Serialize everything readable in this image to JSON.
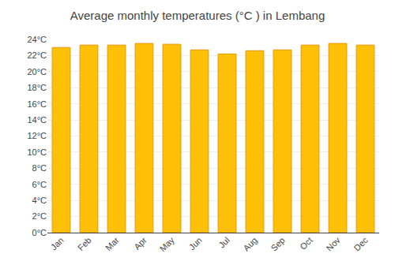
{
  "chart_data": {
    "type": "bar",
    "title": "Average monthly temperatures (°C ) in Lembang",
    "categories": [
      "Jan",
      "Feb",
      "Mar",
      "Apr",
      "May",
      "Jun",
      "Jul",
      "Aug",
      "Sep",
      "Oct",
      "Nov",
      "Dec"
    ],
    "values": [
      23.0,
      23.3,
      23.3,
      23.5,
      23.4,
      22.7,
      22.2,
      22.6,
      22.7,
      23.3,
      23.5,
      23.3
    ],
    "color": "#FFC107",
    "ylim": [
      0,
      24
    ],
    "yticks": [
      {
        "value": 0,
        "label": "0°C"
      },
      {
        "value": 2,
        "label": "2°C"
      },
      {
        "value": 4,
        "label": "4°C"
      },
      {
        "value": 6,
        "label": "6°C"
      },
      {
        "value": 8,
        "label": "8°C"
      },
      {
        "value": 10,
        "label": "10°C"
      },
      {
        "value": 12,
        "label": "12°C"
      },
      {
        "value": 14,
        "label": "14°C"
      },
      {
        "value": 16,
        "label": "16°C"
      },
      {
        "value": 18,
        "label": "18°C"
      },
      {
        "value": 20,
        "label": "20°C"
      },
      {
        "value": 22,
        "label": "22°C"
      },
      {
        "value": 24,
        "label": "24°C"
      }
    ],
    "grid": true
  }
}
